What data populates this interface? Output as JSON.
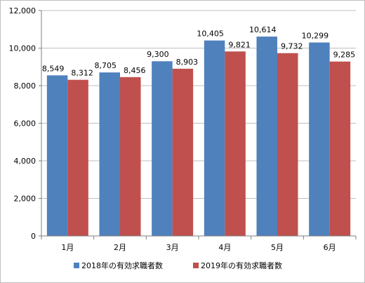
{
  "chart_data": {
    "type": "bar",
    "categories": [
      "1月",
      "2月",
      "3月",
      "4月",
      "5月",
      "6月"
    ],
    "series": [
      {
        "name": "2018年の有効求職者数",
        "values": [
          8549,
          8705,
          9300,
          10405,
          10614,
          10299
        ],
        "color": "#4f81bd"
      },
      {
        "name": "2019年の有効求職者数",
        "values": [
          8312,
          8456,
          8903,
          9821,
          9732,
          9285
        ],
        "color": "#c0504d"
      }
    ],
    "y_ticks": [
      "0",
      "2,000",
      "4,000",
      "6,000",
      "8,000",
      "10,000",
      "12,000"
    ],
    "data_labels": [
      [
        "8,549",
        "8,705",
        "9,300",
        "10,405",
        "10,614",
        "10,299"
      ],
      [
        "8,312",
        "8,456",
        "8,903",
        "9,821",
        "9,732",
        "9,285"
      ]
    ],
    "ylim": [
      0,
      12000
    ],
    "grid": true,
    "legend_position": "bottom"
  }
}
